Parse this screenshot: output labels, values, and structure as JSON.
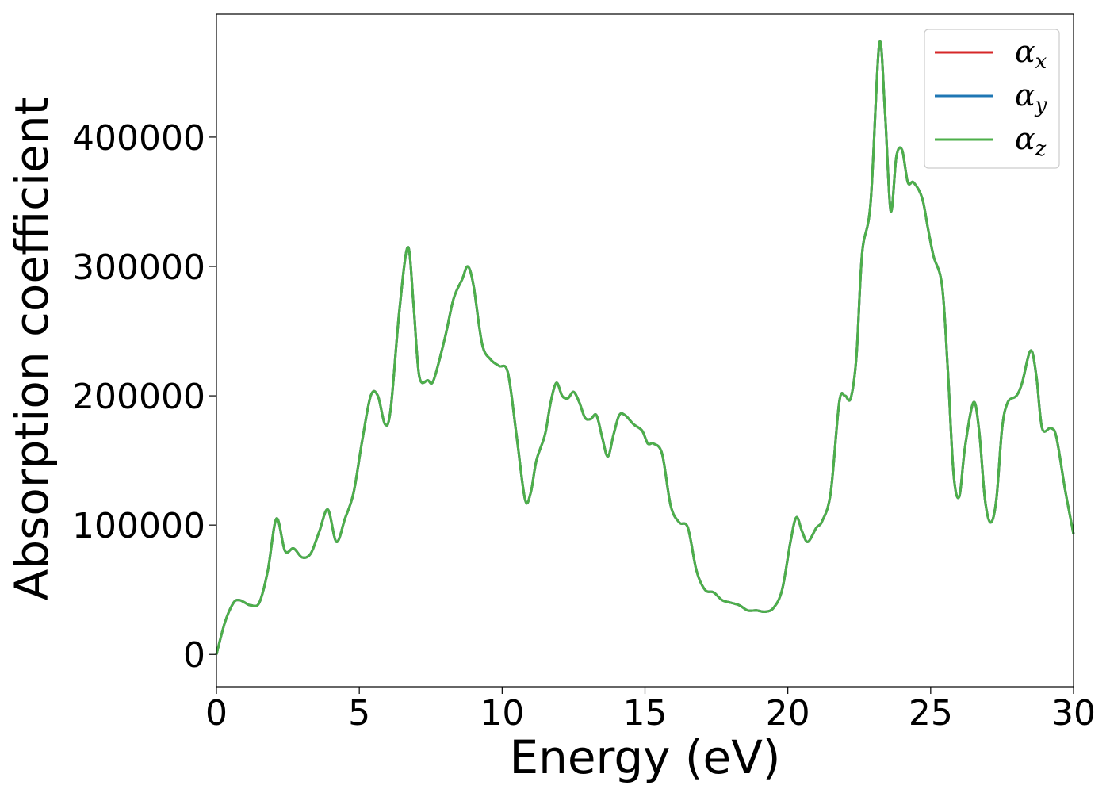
{
  "chart_data": {
    "type": "line",
    "title": "",
    "xlabel": "Energy (eV)",
    "ylabel": "Absorption coefficient",
    "xlim": [
      0,
      30
    ],
    "ylim": [
      -25000,
      495000
    ],
    "xticks": [
      "0",
      "5",
      "10",
      "15",
      "20",
      "25",
      "30"
    ],
    "yticks": [
      "0",
      "100000",
      "200000",
      "300000",
      "400000"
    ],
    "grid": false,
    "legend_position": "top-right",
    "series": [
      {
        "name": "α",
        "subscript": "x",
        "color": "#d62728"
      },
      {
        "name": "α",
        "subscript": "y",
        "color": "#1f77b4"
      },
      {
        "name": "α",
        "subscript": "z",
        "color": "#4daf4a"
      }
    ],
    "x": [
      0,
      0.3,
      0.6,
      0.8,
      1.0,
      1.2,
      1.5,
      1.8,
      2.1,
      2.4,
      2.7,
      3.0,
      3.3,
      3.6,
      3.9,
      4.2,
      4.5,
      4.8,
      5.1,
      5.4,
      5.65,
      5.9,
      6.1,
      6.4,
      6.7,
      6.9,
      7.1,
      7.4,
      7.6,
      8.0,
      8.3,
      8.6,
      8.8,
      9.0,
      9.3,
      9.6,
      9.9,
      10.2,
      10.5,
      10.8,
      11.0,
      11.2,
      11.5,
      11.7,
      11.9,
      12.1,
      12.3,
      12.5,
      12.7,
      12.9,
      13.1,
      13.3,
      13.5,
      13.7,
      13.9,
      14.1,
      14.3,
      14.6,
      14.9,
      15.1,
      15.3,
      15.6,
      15.9,
      16.2,
      16.5,
      16.8,
      17.1,
      17.4,
      17.7,
      18.0,
      18.3,
      18.6,
      18.9,
      19.2,
      19.5,
      19.8,
      20.1,
      20.3,
      20.5,
      20.7,
      21.0,
      21.2,
      21.5,
      21.8,
      22.0,
      22.2,
      22.4,
      22.6,
      22.9,
      23.2,
      23.4,
      23.6,
      23.8,
      24.0,
      24.2,
      24.4,
      24.7,
      24.9,
      25.1,
      25.4,
      25.6,
      25.8,
      26.0,
      26.2,
      26.5,
      26.7,
      26.9,
      27.1,
      27.3,
      27.5,
      27.7,
      28.0,
      28.2,
      28.5,
      28.7,
      28.9,
      29.2,
      29.4,
      29.7,
      30.0
    ],
    "y": [
      0,
      25000,
      40000,
      42000,
      40000,
      38000,
      40000,
      65000,
      105000,
      80000,
      82000,
      75000,
      78000,
      95000,
      112000,
      87000,
      105000,
      125000,
      165000,
      200000,
      200000,
      178000,
      190000,
      265000,
      315000,
      270000,
      215000,
      212000,
      212000,
      245000,
      275000,
      290000,
      300000,
      285000,
      240000,
      228000,
      223000,
      218000,
      170000,
      120000,
      125000,
      150000,
      170000,
      195000,
      210000,
      200000,
      198000,
      203000,
      195000,
      183000,
      182000,
      185000,
      168000,
      153000,
      170000,
      185000,
      185000,
      178000,
      173000,
      163000,
      163000,
      155000,
      115000,
      102000,
      98000,
      65000,
      50000,
      48000,
      42000,
      40000,
      38000,
      34000,
      34000,
      33000,
      36000,
      50000,
      88000,
      106000,
      95000,
      87000,
      98000,
      103000,
      125000,
      195000,
      200000,
      198000,
      230000,
      310000,
      350000,
      472000,
      420000,
      343000,
      385000,
      390000,
      365000,
      365000,
      353000,
      330000,
      308000,
      285000,
      220000,
      140000,
      122000,
      160000,
      195000,
      172000,
      120000,
      102000,
      120000,
      175000,
      195000,
      200000,
      210000,
      235000,
      215000,
      175000,
      175000,
      168000,
      128000,
      93000
    ]
  }
}
